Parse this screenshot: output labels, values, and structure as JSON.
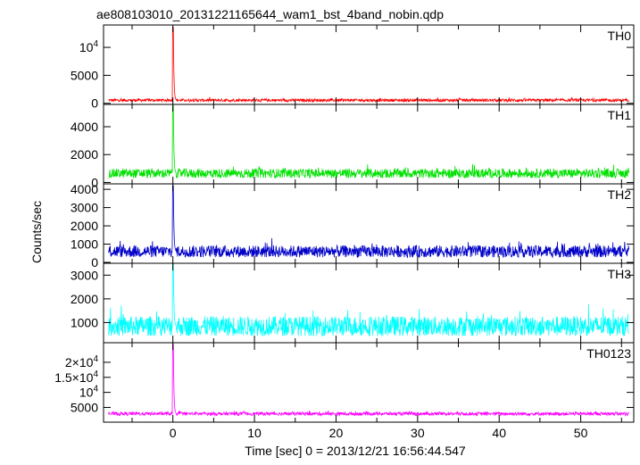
{
  "chart_data": {
    "type": "line",
    "title": "ae808103010_20131221165644_wam1_bst_4band_nobin.qdp",
    "xlabel": "Time [sec] 0 = 2013/12/21 16:56:44.547",
    "ylabel": "Counts/sec",
    "xlim": [
      -8.5,
      56.5
    ],
    "x_ticks": [
      0,
      10,
      20,
      30,
      40,
      50
    ],
    "x_tick_labels": [
      "0",
      "10",
      "20",
      "30",
      "40",
      "50"
    ],
    "grid": false,
    "legend": "none",
    "panels": [
      {
        "name": "TH0",
        "color": "#ff0000",
        "ylim": [
          -200,
          14000
        ],
        "y_ticks": [
          0,
          5000,
          10000
        ],
        "y_tick_labels": [
          {
            "mantissa": "0"
          },
          {
            "mantissa": "5000"
          },
          {
            "mantissa": "10",
            "exp": "4"
          }
        ],
        "baseline": 550,
        "noise": 260,
        "peak": 13600
      },
      {
        "name": "TH1",
        "color": "#00e000",
        "ylim": [
          -100,
          5600
        ],
        "y_ticks": [
          0,
          2000,
          4000
        ],
        "y_tick_labels": [
          {
            "mantissa": "0"
          },
          {
            "mantissa": "2000"
          },
          {
            "mantissa": "4000"
          }
        ],
        "baseline": 650,
        "noise": 330,
        "peak": 5500
      },
      {
        "name": "TH2",
        "color": "#0000c8",
        "ylim": [
          -50,
          4300
        ],
        "y_ticks": [
          0,
          1000,
          2000,
          3000,
          4000
        ],
        "y_tick_labels": [
          {
            "mantissa": "0"
          },
          {
            "mantissa": "1000"
          },
          {
            "mantissa": "2000"
          },
          {
            "mantissa": "3000"
          },
          {
            "mantissa": "4000"
          }
        ],
        "baseline": 600,
        "noise": 330,
        "peak": 4200
      },
      {
        "name": "TH3",
        "color": "#00ffff",
        "ylim": [
          150,
          3500
        ],
        "y_ticks": [
          1000,
          2000,
          3000
        ],
        "y_tick_labels": [
          {
            "mantissa": "1000"
          },
          {
            "mantissa": "2000"
          },
          {
            "mantissa": "3000"
          }
        ],
        "baseline": 850,
        "noise": 420,
        "peak": 3500
      },
      {
        "name": "TH0123",
        "color": "#ff00ff",
        "ylim": [
          100,
          26500
        ],
        "y_ticks": [
          5000,
          10000,
          15000,
          20000
        ],
        "y_tick_labels": [
          {
            "mantissa": "5000"
          },
          {
            "mantissa": "10",
            "exp": "4"
          },
          {
            "mantissa": "1.5×10",
            "exp": "4"
          },
          {
            "mantissa": "2×10",
            "exp": "4"
          }
        ],
        "baseline": 2900,
        "noise": 550,
        "peak": 26000
      }
    ]
  }
}
